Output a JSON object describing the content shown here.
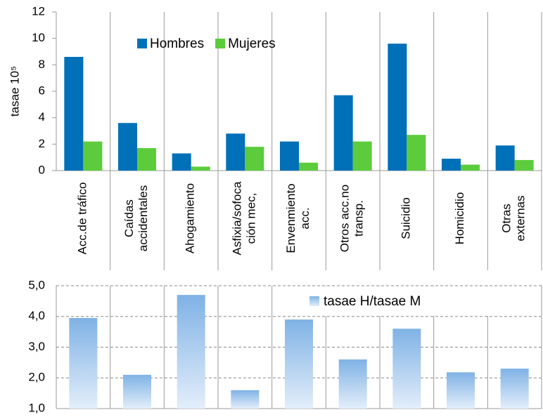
{
  "chart_data": [
    {
      "type": "bar",
      "ylabel": "tasae 10⁵",
      "categories": [
        "Acc.de tráfico",
        "Caídas\naccidentales",
        "Ahogamiento",
        "Asfixia/sofoca\nción mec,",
        "Envenmiento\nacc.",
        "Otros acc.no\ntransp.",
        "Suicidio",
        "Homicidio",
        "Otras\nexternas"
      ],
      "series": [
        {
          "name": "Hombres",
          "color": "#0070b8",
          "values": [
            8.6,
            3.6,
            1.3,
            2.8,
            2.2,
            5.7,
            9.6,
            0.9,
            1.9
          ]
        },
        {
          "name": "Mujeres",
          "color": "#5ccc3c",
          "values": [
            2.2,
            1.7,
            0.3,
            1.8,
            0.6,
            2.2,
            2.7,
            0.45,
            0.8
          ]
        }
      ],
      "ylim": [
        0,
        12
      ],
      "yticks": [
        0,
        2,
        4,
        6,
        8,
        10,
        12
      ],
      "legend": "top"
    },
    {
      "type": "bar",
      "series": [
        {
          "name": "tasae H/tasae M",
          "color": "#7fb2e5",
          "values": [
            3.95,
            2.1,
            4.7,
            1.6,
            3.9,
            2.6,
            3.6,
            2.18,
            2.3
          ]
        }
      ],
      "ylim": [
        1,
        5
      ],
      "yticks": [
        {
          "value": 1,
          "label": "1,0"
        },
        {
          "value": 2,
          "label": "2,0"
        },
        {
          "value": 3,
          "label": "3,0"
        },
        {
          "value": 4,
          "label": "4,0"
        },
        {
          "value": 5,
          "label": "5,0"
        }
      ],
      "grid": true,
      "legend": "top-right"
    }
  ]
}
